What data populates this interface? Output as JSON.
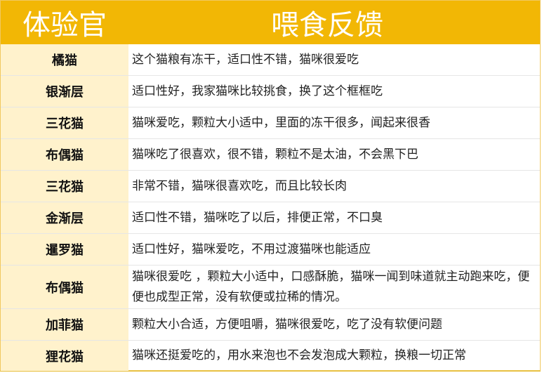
{
  "header": {
    "col1": "体验官",
    "col2": "喂食反馈"
  },
  "rows": [
    {
      "name": "橘猫",
      "feedback": "这个猫粮有冻干，适口性不错，猫咪很爱吃"
    },
    {
      "name": "银渐层",
      "feedback": "适口性好，我家猫咪比较挑食，换了这个框框吃"
    },
    {
      "name": "三花猫",
      "feedback": "猫咪爱吃，颗粒大小适中，里面的冻干很多，闻起来很香"
    },
    {
      "name": "布偶猫",
      "feedback": "猫咪吃了很喜欢，很不错，颗粒不是太油，不会黑下巴"
    },
    {
      "name": "三花猫",
      "feedback": "非常不错，猫咪很喜欢吃，而且比较长肉"
    },
    {
      "name": "金渐层",
      "feedback": "适口性不错，猫咪吃了以后，排便正常，不口臭"
    },
    {
      "name": "暹罗猫",
      "feedback": "适口性好，猫咪爱吃，不用过渡猫咪也能适应"
    },
    {
      "name": "布偶猫",
      "feedback": "猫咪很爱吃 ，颗粒大小适中，口感酥脆，猫咪一闻到味道就主动跑来吃，便便也成型正常，没有软便或拉稀的情况。"
    },
    {
      "name": "加菲猫",
      "feedback": "颗粒大小合适，方便咀嚼，猫咪很爱吃，吃了没有软便问题"
    },
    {
      "name": "狸花猫",
      "feedback": "猫咪还挺爱吃的，用水来泡也不会发泡成大颗粒，换粮一切正常"
    }
  ],
  "colors": {
    "header_bg": "#f2b705",
    "name_col_bg": "#fff2cc"
  }
}
